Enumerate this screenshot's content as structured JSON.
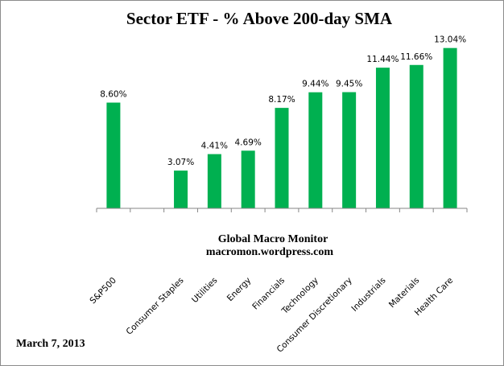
{
  "chart_data": {
    "type": "bar",
    "title": "Sector ETF - % Above 200-day SMA",
    "categories": [
      "S&P500",
      "",
      "Consumer Staples",
      "Utilities",
      "Energy",
      "Financials",
      "Technology",
      "Consumer Discretionary",
      "Industrials",
      "Materials",
      "Health Care"
    ],
    "values": [
      8.6,
      null,
      3.07,
      4.41,
      4.69,
      8.17,
      9.44,
      9.45,
      11.44,
      11.66,
      13.04
    ],
    "data_labels": [
      "8.60%",
      "",
      "3.07%",
      "4.41%",
      "4.69%",
      "8.17%",
      "9.44%",
      "9.45%",
      "11.44%",
      "11.66%",
      "13.04%"
    ],
    "ylim": [
      0,
      14
    ],
    "grid": false,
    "legend": "none",
    "bar_color": "#00B050",
    "xlabel": "",
    "ylabel": ""
  },
  "annotations": {
    "source_line1": "Global Macro Monitor",
    "source_line2": "macromon.wordpress.com",
    "date": "March 7, 2013"
  }
}
